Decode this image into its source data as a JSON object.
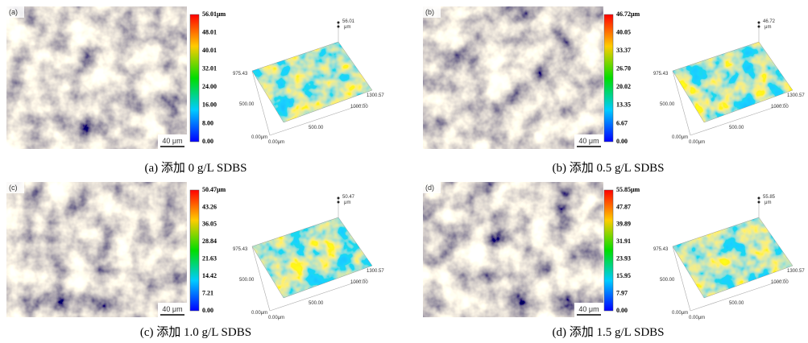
{
  "panels": [
    {
      "label": "(a)",
      "scale_bar": "40 μm",
      "colorbar": [
        "56.01μm",
        "48.01",
        "40.01",
        "32.01",
        "24.00",
        "16.00",
        "8.00",
        "0.00"
      ],
      "z_top": [
        "56.01",
        "μm"
      ],
      "axes": {
        "y_max": "975.43",
        "y_mid": "500.00",
        "y_origin": "0.00μm",
        "x_origin": "0.00μm",
        "x_mid": "500.00",
        "x_high": "1000.00",
        "x_max": "1300.57"
      },
      "caption": "(a)  添加 0 g/L SDBS"
    },
    {
      "label": "(b)",
      "scale_bar": "40 μm",
      "colorbar": [
        "46.72μm",
        "40.05",
        "33.37",
        "26.70",
        "20.02",
        "13.35",
        "6.67",
        "0.00"
      ],
      "z_top": [
        "46.72",
        "μm"
      ],
      "axes": {
        "y_max": "975.43",
        "y_mid": "500.00",
        "y_origin": "0.00μm",
        "x_origin": "0.00μm",
        "x_mid": "500.00",
        "x_high": "1000.00",
        "x_max": "1300.57"
      },
      "caption": "(b)  添加 0.5 g/L SDBS"
    },
    {
      "label": "(c)",
      "scale_bar": "40 μm",
      "colorbar": [
        "50.47μm",
        "43.26",
        "36.05",
        "28.84",
        "21.63",
        "14.42",
        "7.21",
        "0.00"
      ],
      "z_top": [
        "50.47",
        "μm"
      ],
      "axes": {
        "y_max": "975.43",
        "y_mid": "500.00",
        "y_origin": "0.00μm",
        "x_origin": "0.00μm",
        "x_mid": "500.00",
        "x_high": "1000.00",
        "x_max": "1300.57"
      },
      "caption": "(c)  添加 1.0 g/L SDBS"
    },
    {
      "label": "(d)",
      "scale_bar": "40 μm",
      "colorbar": [
        "55.85μm",
        "47.87",
        "39.89",
        "31.91",
        "23.93",
        "15.95",
        "7.97",
        "0.00"
      ],
      "z_top": [
        "55.85",
        "μm"
      ],
      "axes": {
        "y_max": "975.43",
        "y_mid": "500.00",
        "y_origin": "0.00μm",
        "x_origin": "0.00μm",
        "x_mid": "500.00",
        "x_high": "1000.00",
        "x_max": "1300.57"
      },
      "caption": "(d)  添加 1.5 g/L SDBS"
    }
  ]
}
